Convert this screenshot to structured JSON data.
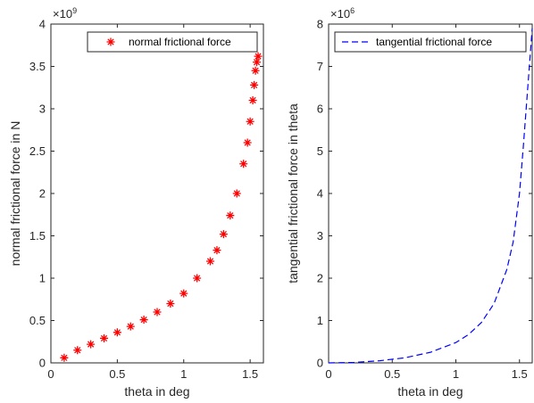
{
  "chart_data": [
    {
      "type": "scatter",
      "marker": "asterisk",
      "color": "#ff0000",
      "xlabel": "theta in deg",
      "ylabel": "normal frictional force in N",
      "exponent_label": "×10",
      "exponent_power": "9",
      "xlim": [
        0,
        1.6
      ],
      "ylim": [
        0,
        4
      ],
      "xticks": [
        "0",
        "0.5",
        "1",
        "1.5"
      ],
      "yticks": [
        "0",
        "0.5",
        "1",
        "1.5",
        "2",
        "2.5",
        "3",
        "3.5",
        "4"
      ],
      "legend": "normal frictional force",
      "legend_position": "top-right",
      "series": [
        {
          "name": "normal frictional force",
          "x": [
            0.1,
            0.2,
            0.3,
            0.4,
            0.5,
            0.6,
            0.7,
            0.8,
            0.9,
            1.0,
            1.1,
            1.2,
            1.25,
            1.3,
            1.35,
            1.4,
            1.45,
            1.48,
            1.5,
            1.52,
            1.53,
            1.54,
            1.55,
            1.56
          ],
          "y": [
            0.06,
            0.15,
            0.22,
            0.29,
            0.36,
            0.43,
            0.51,
            0.6,
            0.7,
            0.82,
            1.0,
            1.2,
            1.33,
            1.52,
            1.74,
            2.0,
            2.35,
            2.6,
            2.85,
            3.1,
            3.28,
            3.45,
            3.55,
            3.62
          ]
        }
      ]
    },
    {
      "type": "line",
      "line_style": "dashed",
      "color": "#0000ff",
      "xlabel": "theta in deg",
      "ylabel": "tangential frictional force in theta",
      "exponent_label": "×10",
      "exponent_power": "6",
      "xlim": [
        0,
        1.6
      ],
      "ylim": [
        0,
        8
      ],
      "xticks": [
        "0",
        "0.5",
        "1",
        "1.5"
      ],
      "yticks": [
        "0",
        "1",
        "2",
        "3",
        "4",
        "5",
        "6",
        "7",
        "8"
      ],
      "legend": "tangential frictional force",
      "legend_position": "top-right",
      "series": [
        {
          "name": "tangential frictional force",
          "x": [
            0,
            0.2,
            0.4,
            0.6,
            0.8,
            1.0,
            1.1,
            1.2,
            1.3,
            1.4,
            1.45,
            1.5,
            1.53,
            1.56,
            1.58,
            1.6
          ],
          "y": [
            0,
            0.01,
            0.05,
            0.12,
            0.25,
            0.48,
            0.67,
            0.95,
            1.4,
            2.2,
            2.85,
            4.0,
            5.1,
            6.3,
            7.1,
            7.9
          ]
        }
      ]
    }
  ]
}
